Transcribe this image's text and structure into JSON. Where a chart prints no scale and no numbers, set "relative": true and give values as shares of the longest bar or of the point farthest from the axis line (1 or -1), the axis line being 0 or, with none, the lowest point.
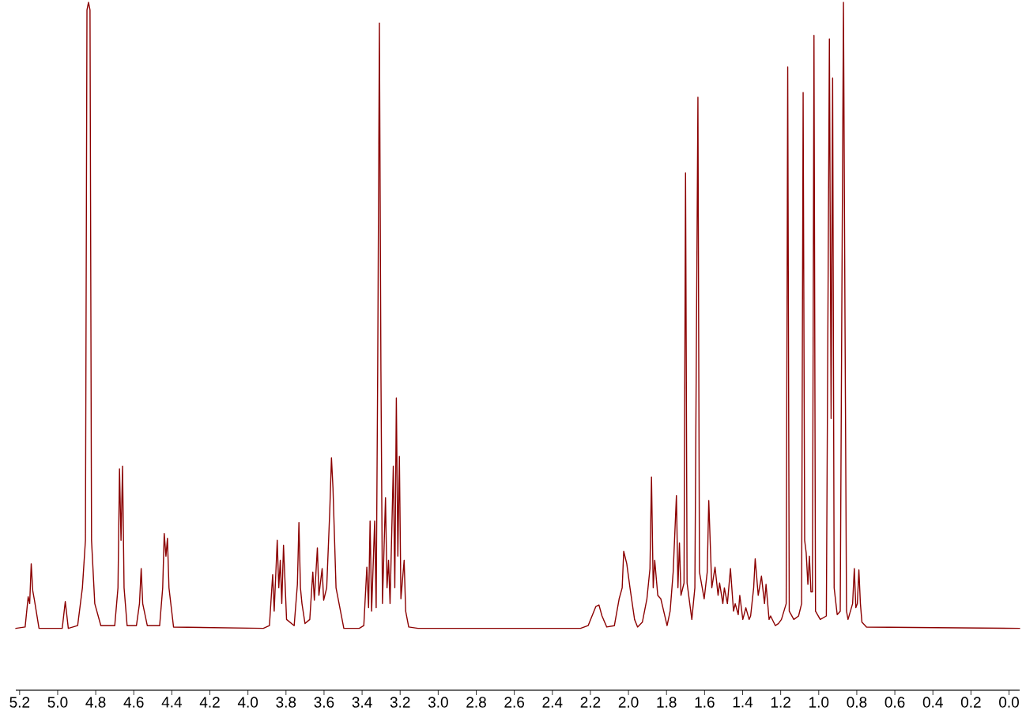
{
  "chart_data": {
    "type": "line",
    "relative": true,
    "color": "#8b0000",
    "tick_labels": "x",
    "xlim": [
      5.22,
      -0.056
    ],
    "xticks": [
      5.2,
      {
        "value": 5,
        "label": "5.0"
      },
      4.8,
      4.6,
      4.4,
      4.2,
      {
        "value": 4,
        "label": "4.0"
      },
      3.8,
      3.6,
      3.4,
      3.2,
      {
        "value": 3,
        "label": "3.0"
      },
      2.8,
      2.6,
      2.4,
      2.2,
      {
        "value": 2,
        "label": "2.0"
      },
      1.8,
      1.6,
      1.4,
      1.2,
      {
        "value": 1,
        "label": "1.0"
      },
      0.8,
      0.6,
      0.4,
      0.2,
      {
        "value": 0,
        "label": "0.0"
      }
    ],
    "x": [
      5.22,
      5.171,
      5.155,
      5.147,
      5.139,
      5.131,
      5.122,
      5.098,
      4.976,
      4.96,
      4.944,
      4.895,
      4.87,
      4.854,
      4.846,
      4.838,
      4.83,
      4.822,
      4.805,
      4.773,
      4.7,
      4.683,
      4.675,
      4.667,
      4.659,
      4.651,
      4.635,
      4.586,
      4.57,
      4.561,
      4.553,
      4.529,
      4.464,
      4.448,
      4.44,
      4.431,
      4.423,
      4.415,
      4.391,
      3.919,
      3.887,
      3.87,
      3.862,
      3.846,
      3.838,
      3.83,
      3.822,
      3.813,
      3.797,
      3.757,
      3.74,
      3.732,
      3.724,
      3.716,
      3.7,
      3.675,
      3.659,
      3.651,
      3.635,
      3.627,
      3.61,
      3.602,
      3.586,
      3.57,
      3.561,
      3.553,
      3.537,
      3.521,
      3.496,
      3.415,
      3.391,
      3.375,
      3.366,
      3.358,
      3.35,
      3.334,
      3.326,
      3.318,
      3.309,
      3.301,
      3.293,
      3.277,
      3.269,
      3.261,
      3.253,
      3.236,
      3.228,
      3.22,
      3.212,
      3.204,
      3.196,
      3.179,
      3.171,
      3.155,
      3.106,
      2.252,
      2.212,
      2.171,
      2.155,
      2.139,
      2.114,
      2.074,
      2.049,
      2.033,
      2.025,
      2.009,
      1.992,
      1.968,
      1.952,
      1.927,
      1.903,
      1.887,
      1.879,
      1.87,
      1.862,
      1.846,
      1.83,
      1.797,
      1.781,
      1.765,
      1.748,
      1.74,
      1.732,
      1.724,
      1.708,
      1.7,
      1.692,
      1.667,
      1.651,
      1.635,
      1.627,
      1.602,
      1.586,
      1.578,
      1.562,
      1.545,
      1.529,
      1.521,
      1.504,
      1.496,
      1.48,
      1.464,
      1.448,
      1.439,
      1.423,
      1.415,
      1.399,
      1.383,
      1.366,
      1.358,
      1.342,
      1.334,
      1.318,
      1.301,
      1.285,
      1.277,
      1.261,
      1.253,
      1.228,
      1.212,
      1.196,
      1.171,
      1.163,
      1.155,
      1.131,
      1.106,
      1.09,
      1.082,
      1.074,
      1.066,
      1.057,
      1.049,
      1.041,
      1.033,
      1.025,
      1.017,
      0.992,
      0.96,
      0.944,
      0.935,
      0.927,
      0.919,
      0.903,
      0.887,
      0.879,
      0.87,
      0.862,
      0.854,
      0.846,
      0.822,
      0.813,
      0.805,
      0.797,
      0.789,
      0.781,
      0.773,
      0.749,
      -0.056
    ],
    "values": [
      0.09,
      0.092,
      0.136,
      0.126,
      0.184,
      0.145,
      0.131,
      0.09,
      0.09,
      0.129,
      0.09,
      0.094,
      0.149,
      0.218,
      0.989,
      1,
      0.989,
      0.218,
      0.126,
      0.094,
      0.094,
      0.149,
      0.322,
      0.218,
      0.326,
      0.149,
      0.094,
      0.094,
      0.126,
      0.177,
      0.126,
      0.094,
      0.094,
      0.149,
      0.228,
      0.195,
      0.221,
      0.149,
      0.092,
      0.09,
      0.094,
      0.168,
      0.115,
      0.218,
      0.149,
      0.189,
      0.126,
      0.211,
      0.103,
      0.094,
      0.154,
      0.244,
      0.149,
      0.126,
      0.097,
      0.103,
      0.172,
      0.131,
      0.207,
      0.138,
      0.177,
      0.131,
      0.149,
      0.26,
      0.338,
      0.294,
      0.149,
      0.126,
      0.09,
      0.09,
      0.094,
      0.179,
      0.12,
      0.246,
      0.115,
      0.246,
      0.12,
      0.464,
      0.97,
      0.464,
      0.126,
      0.28,
      0.149,
      0.189,
      0.126,
      0.326,
      0.149,
      0.425,
      0.195,
      0.34,
      0.133,
      0.189,
      0.115,
      0.092,
      0.09,
      0.09,
      0.094,
      0.122,
      0.124,
      0.108,
      0.092,
      0.094,
      0.133,
      0.149,
      0.202,
      0.184,
      0.149,
      0.103,
      0.092,
      0.099,
      0.133,
      0.177,
      0.31,
      0.149,
      0.189,
      0.138,
      0.133,
      0.094,
      0.115,
      0.172,
      0.283,
      0.149,
      0.214,
      0.138,
      0.156,
      0.752,
      0.156,
      0.103,
      0.149,
      0.862,
      0.172,
      0.133,
      0.172,
      0.276,
      0.149,
      0.179,
      0.138,
      0.156,
      0.126,
      0.149,
      0.126,
      0.177,
      0.115,
      0.126,
      0.11,
      0.138,
      0.103,
      0.12,
      0.103,
      0.108,
      0.149,
      0.191,
      0.138,
      0.166,
      0.126,
      0.154,
      0.103,
      0.108,
      0.094,
      0.097,
      0.103,
      0.126,
      0.906,
      0.115,
      0.103,
      0.108,
      0.126,
      0.869,
      0.218,
      0.2,
      0.154,
      0.195,
      0.143,
      0.143,
      0.952,
      0.115,
      0.103,
      0.108,
      0.947,
      0.395,
      0.89,
      0.149,
      0.11,
      0.115,
      0.54,
      1,
      0.54,
      0.115,
      0.103,
      0.126,
      0.177,
      0.12,
      0.126,
      0.175,
      0.126,
      0.099,
      0.092,
      0.09
    ]
  }
}
